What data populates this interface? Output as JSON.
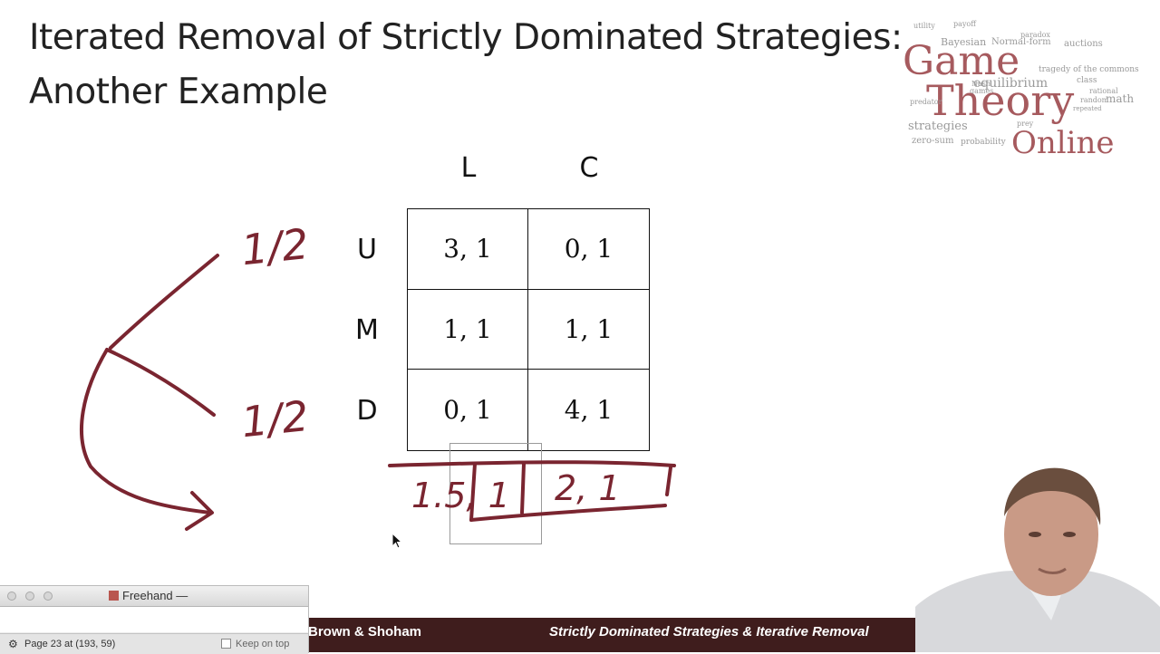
{
  "slide": {
    "title_line1": "Iterated Removal of Strictly Dominated Strategies:",
    "title_line2": "Another Example",
    "logo": {
      "big_words": [
        "Game",
        "Theory",
        "Online"
      ],
      "small_words": [
        "payoff",
        "Bayesian",
        "Normal-form",
        "auctions",
        "tragedy of the commons",
        "equilibrium",
        "Nash",
        "games",
        "class",
        "strategies",
        "zero-sum",
        "probability",
        "rational",
        "math",
        "repeated",
        "predator",
        "prey",
        "random",
        "utility",
        "paradox"
      ]
    },
    "game": {
      "columns": [
        "L",
        "C"
      ],
      "rows": [
        {
          "label": "U",
          "cells": [
            "3, 1",
            "0, 1"
          ]
        },
        {
          "label": "M",
          "cells": [
            "1, 1",
            "1, 1"
          ]
        },
        {
          "label": "D",
          "cells": [
            "0, 1",
            "4, 1"
          ]
        }
      ]
    },
    "annotations": {
      "prob_top": "1/2",
      "prob_bottom": "1/2",
      "payoff_left": "1.5, 1",
      "payoff_right": "2, 1"
    },
    "footer": {
      "authors": "Brown & Shoham",
      "subtitle": "Strictly Dominated Strategies & Iterative Removal"
    }
  },
  "freehand_window": {
    "title": "Freehand —",
    "status": "Page 23 at (193, 59)",
    "keep_on_top_label": "Keep on top",
    "keep_on_top_checked": false
  },
  "colors": {
    "footer_bg": "#3f1d1d",
    "ink": "#7a2530",
    "logo_accent": "#a65a5e"
  }
}
